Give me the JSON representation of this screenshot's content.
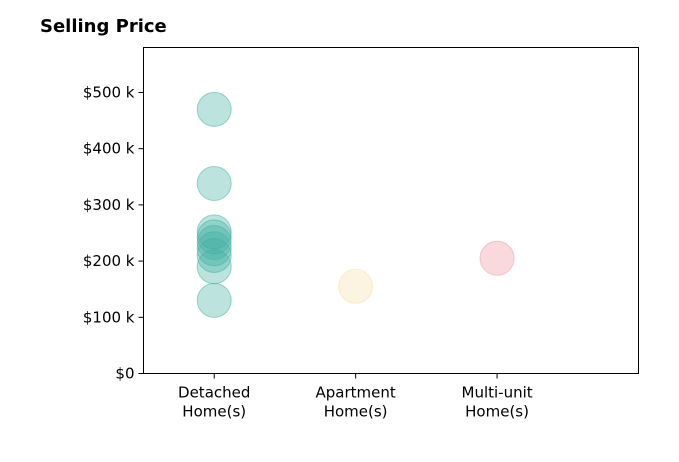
{
  "chart_data": {
    "type": "scatter",
    "title": "Selling Price",
    "xlabel": "",
    "ylabel": "",
    "categories": [
      "Detached\nHome(s)",
      "Apartment\nHome(s)",
      "Multi-unit\nHome(s)"
    ],
    "xlim": [
      -0.5,
      3.0
    ],
    "ylim": [
      0,
      580000
    ],
    "y_ticks": [
      0,
      100000,
      200000,
      300000,
      400000,
      500000
    ],
    "y_tick_labels": [
      "$0",
      "$100 k",
      "$200 k",
      "$300 k",
      "$400 k",
      "$500 k"
    ],
    "grid": false,
    "legend": "none",
    "series": [
      {
        "category": "Detached\nHome(s)",
        "color": "#3fb0a0",
        "values": [
          470000,
          338000,
          252000,
          243000,
          233000,
          222000,
          210000,
          190000,
          130000
        ]
      },
      {
        "category": "Apartment\nHome(s)",
        "color": "#f7dfa8",
        "values": [
          155000
        ]
      },
      {
        "category": "Multi-unit\nHome(s)",
        "color": "#f0939e",
        "values": [
          205000
        ]
      }
    ]
  }
}
